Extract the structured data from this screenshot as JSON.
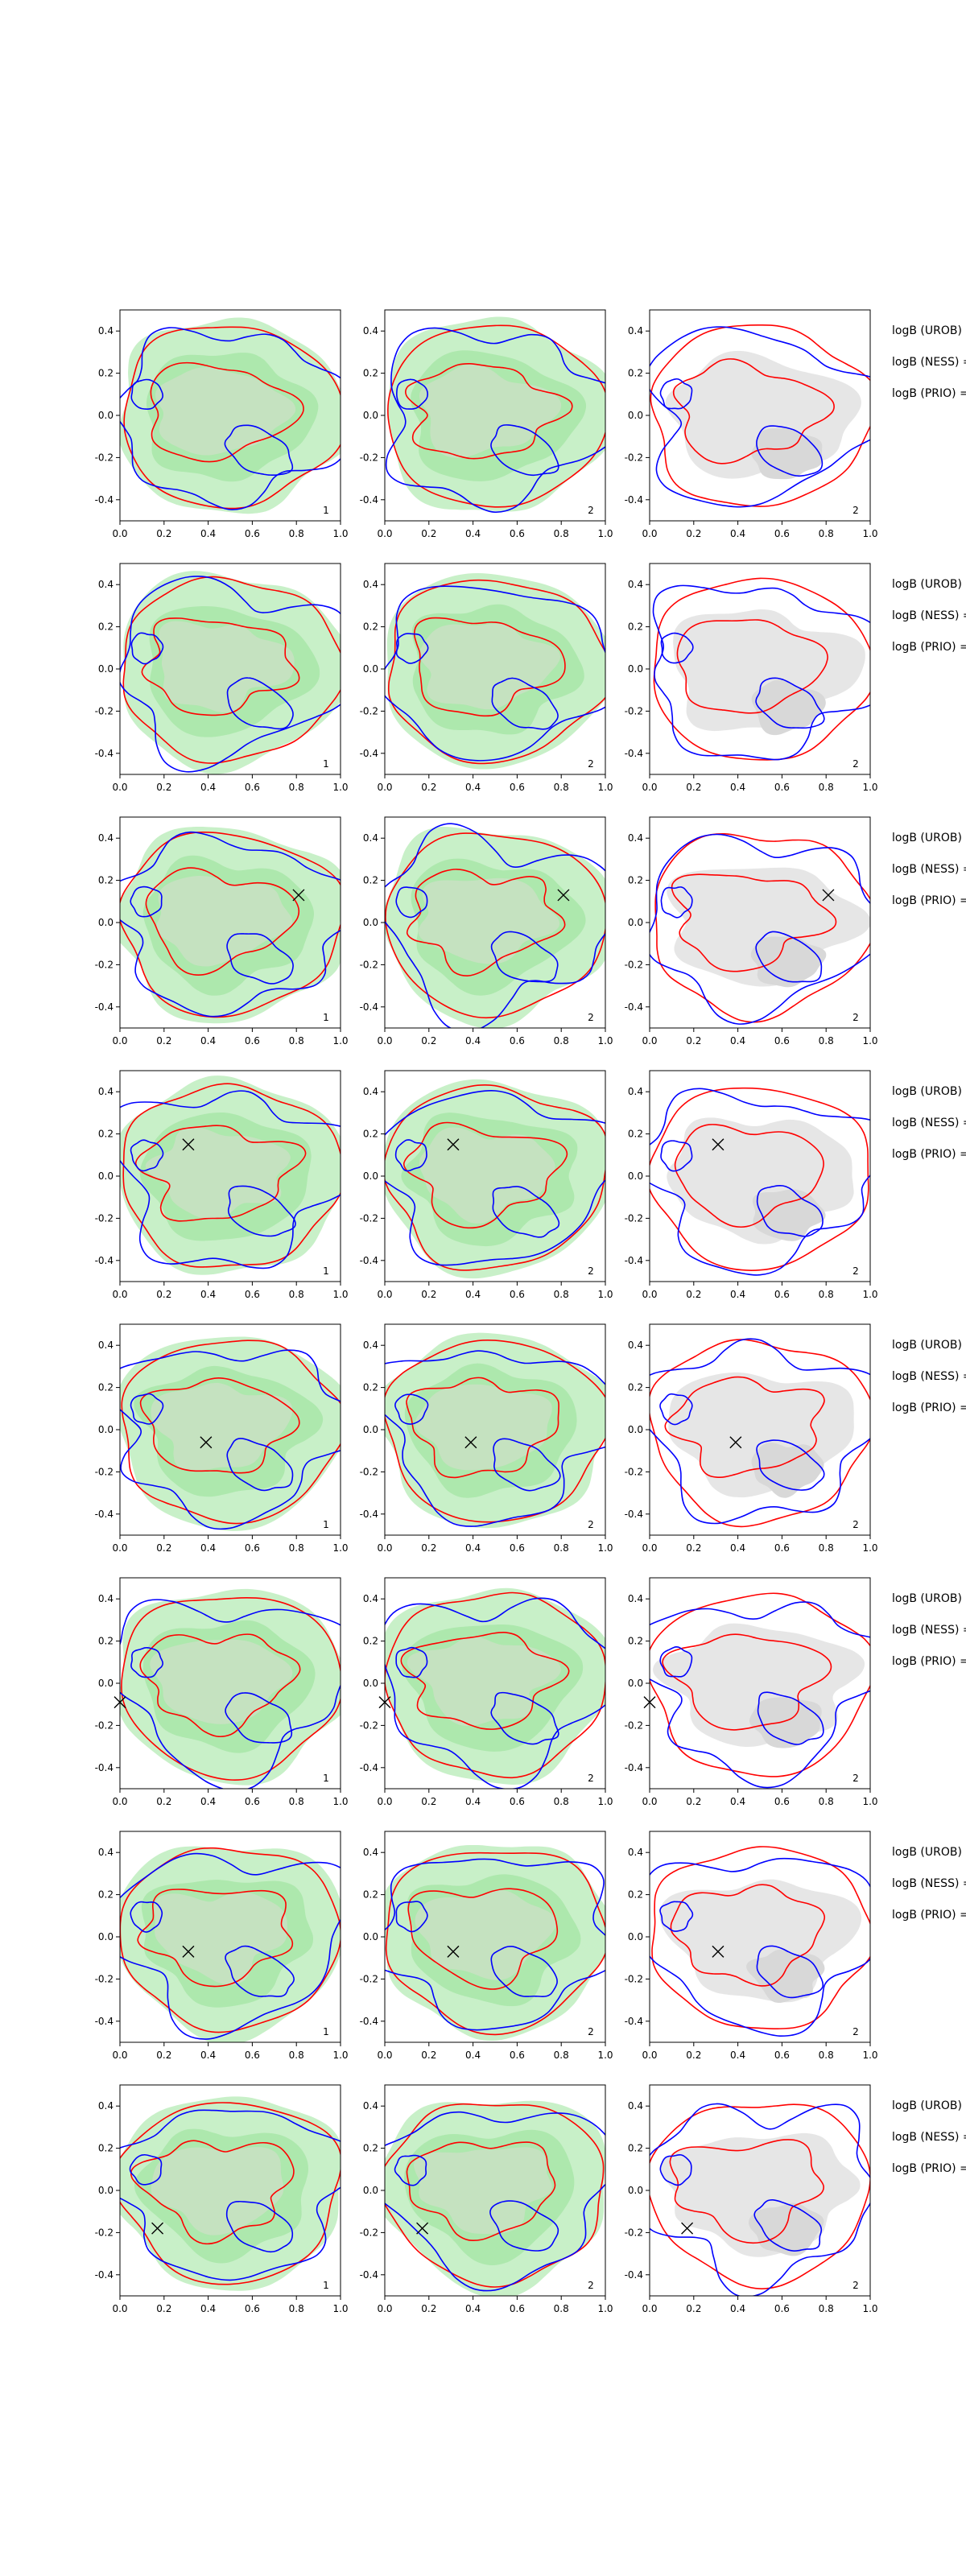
{
  "chart_data": {
    "type": "contour",
    "title": "",
    "xlim": [
      0,
      1
    ],
    "ylim": [
      -0.5,
      0.5
    ],
    "xticks": [
      "0.0",
      "0.2",
      "0.4",
      "0.6",
      "0.8",
      "1.0"
    ],
    "yticks": [
      "0.4",
      "0.2",
      "0.0",
      "-0.2",
      "-0.4"
    ],
    "panel_labels": [
      "1",
      "2",
      "2"
    ],
    "legend_labels": [
      "logB (UROB) =",
      "logB (NESS) =",
      "logB (PRIO) ="
    ],
    "series_colors": {
      "contour_a": "#0000ff",
      "contour_b": "#ff0000",
      "fill_light": "#c8f0c8",
      "fill_dark": "#a8e6a8",
      "fill_grey": "#e6e6e6"
    },
    "rows": [
      {
        "row": 1,
        "marker": null
      },
      {
        "row": 2,
        "marker": null
      },
      {
        "row": 3,
        "marker": [
          0.81,
          0.13
        ]
      },
      {
        "row": 4,
        "marker": [
          0.31,
          0.15
        ]
      },
      {
        "row": 5,
        "marker": [
          0.39,
          -0.06
        ]
      },
      {
        "row": 6,
        "marker": [
          0.0,
          -0.09
        ]
      },
      {
        "row": 7,
        "marker": [
          0.31,
          -0.07
        ]
      },
      {
        "row": 8,
        "marker": [
          0.17,
          -0.18
        ]
      }
    ]
  }
}
